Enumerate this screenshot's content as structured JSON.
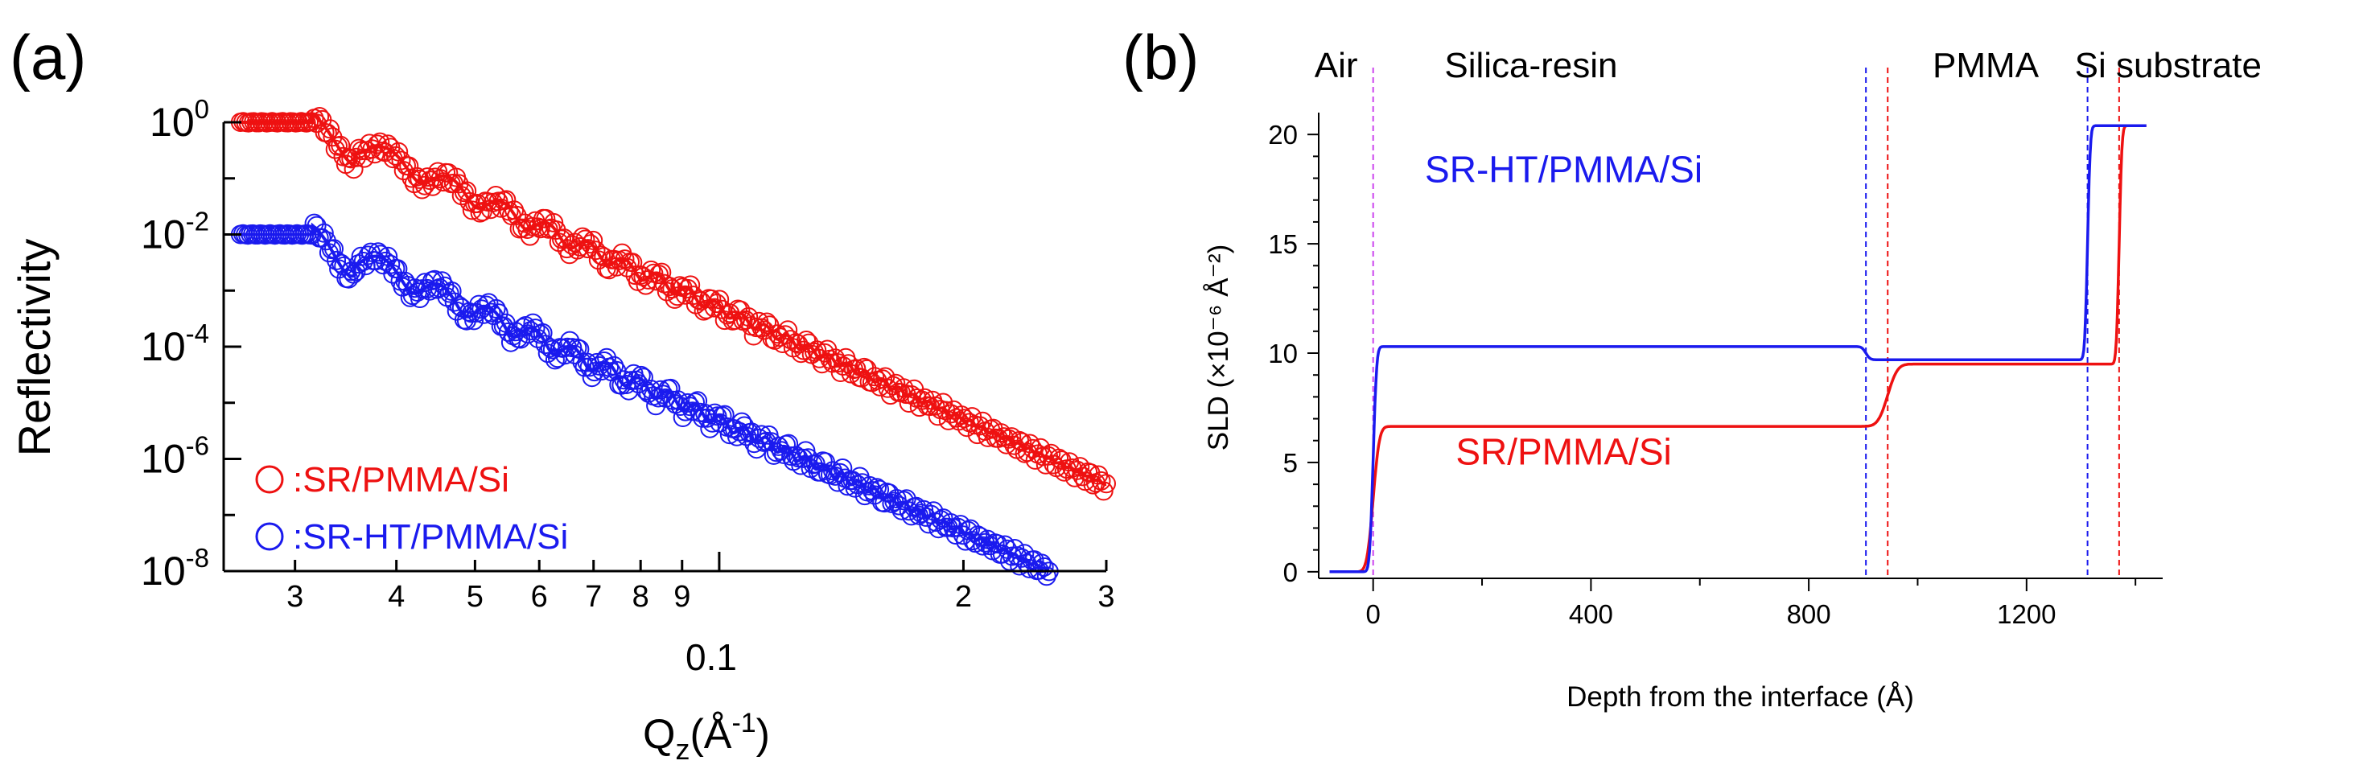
{
  "colors": {
    "red": "#ee1111",
    "blue": "#1a1aee",
    "magenta": "#cc44ee",
    "axis": "#000000"
  },
  "panels": {
    "a": {
      "label": "(a)"
    },
    "b": {
      "label": "(b)"
    }
  },
  "chart_data": [
    {
      "id": "a",
      "type": "scatter",
      "title": "",
      "xlabel_main": "Q",
      "xlabel_sub": "z",
      "xlabel_tail": "(Å",
      "xlabel_sup": "-1",
      "xlabel_close": ")",
      "ylabel": "Reflectivity",
      "xscale": "log",
      "yscale": "log",
      "xlim": [
        0.0245,
        0.3
      ],
      "ylim": [
        1e-08,
        1
      ],
      "x_major_label": "0.1",
      "x_ticks": [
        {
          "v": 0.03,
          "label": "3"
        },
        {
          "v": 0.04,
          "label": "4"
        },
        {
          "v": 0.05,
          "label": "5"
        },
        {
          "v": 0.06,
          "label": "6"
        },
        {
          "v": 0.07,
          "label": "7"
        },
        {
          "v": 0.08,
          "label": "8"
        },
        {
          "v": 0.09,
          "label": "9"
        },
        {
          "v": 0.2,
          "label": "2"
        },
        {
          "v": 0.3,
          "label": "3"
        }
      ],
      "y_ticks": [
        {
          "exp": 0,
          "label": "0"
        },
        {
          "exp": -2,
          "label": "-2"
        },
        {
          "exp": -4,
          "label": "-4"
        },
        {
          "exp": -6,
          "label": "-6"
        },
        {
          "exp": -8,
          "label": "-8"
        }
      ],
      "y_tick_base": "10",
      "series": [
        {
          "name": "SR/PMMA/Si",
          "legend": "○ : SR/PMMA/Si",
          "symbol": "○",
          "legend_text": ":SR/PMMA/Si",
          "color": "red",
          "plateau": 1.0,
          "qc": 0.0315,
          "q_end": 0.3,
          "end_value": 3.5e-07,
          "fringe_period": 0.0075,
          "fringe_amp": 0.42,
          "fringe_decay": 0.1
        },
        {
          "name": "SR-HT/PMMA/Si",
          "legend": "○ : SR-HT/PMMA/Si",
          "symbol": "○",
          "legend_text": ":SR-HT/PMMA/Si",
          "color": "blue",
          "plateau": 0.01,
          "qc": 0.0315,
          "q_end": 0.255,
          "end_value": 1e-08,
          "fringe_period": 0.0069,
          "fringe_amp": 0.45,
          "fringe_decay": 0.1
        }
      ]
    },
    {
      "id": "b",
      "type": "line",
      "title": "",
      "xlabel": "Depth from the interface (Å)",
      "ylabel": "SLD (×10⁻⁶ Å⁻²)",
      "xlim": [
        -100,
        1450
      ],
      "ylim": [
        -0.3,
        21
      ],
      "x_ticks": [
        0,
        400,
        800,
        1200
      ],
      "x_minor": [
        200,
        600,
        1000,
        1400
      ],
      "y_ticks": [
        0,
        5,
        10,
        15,
        20
      ],
      "regions": [
        {
          "label": "Air",
          "x": -68
        },
        {
          "label": "Silica-resin",
          "x": 290
        },
        {
          "label": "PMMA",
          "x": 1125
        },
        {
          "label": "Si substrate",
          "x": 1460
        }
      ],
      "interfaces": [
        {
          "x": 0,
          "color": "magenta"
        },
        {
          "x": 905,
          "color": "blue"
        },
        {
          "x": 945,
          "color": "red"
        },
        {
          "x": 1312,
          "color": "blue"
        },
        {
          "x": 1370,
          "color": "red"
        }
      ],
      "series": [
        {
          "name": "SR/PMMA/Si",
          "label": "SR/PMMA/Si",
          "color": "red",
          "levels": [
            0,
            6.65,
            9.5,
            20.4
          ],
          "edges": [
            0,
            945,
            1370
          ],
          "widths": [
            9,
            14,
            4
          ],
          "label_x": 350,
          "label_y": 5.5
        },
        {
          "name": "SR-HT/PMMA/Si",
          "label": "SR-HT/PMMA/Si",
          "color": "blue",
          "levels": [
            0,
            10.3,
            9.7,
            20.4
          ],
          "edges": [
            0,
            905,
            1312
          ],
          "widths": [
            5,
            6,
            4
          ],
          "label_x": 350,
          "label_y": 18.4
        }
      ]
    }
  ]
}
